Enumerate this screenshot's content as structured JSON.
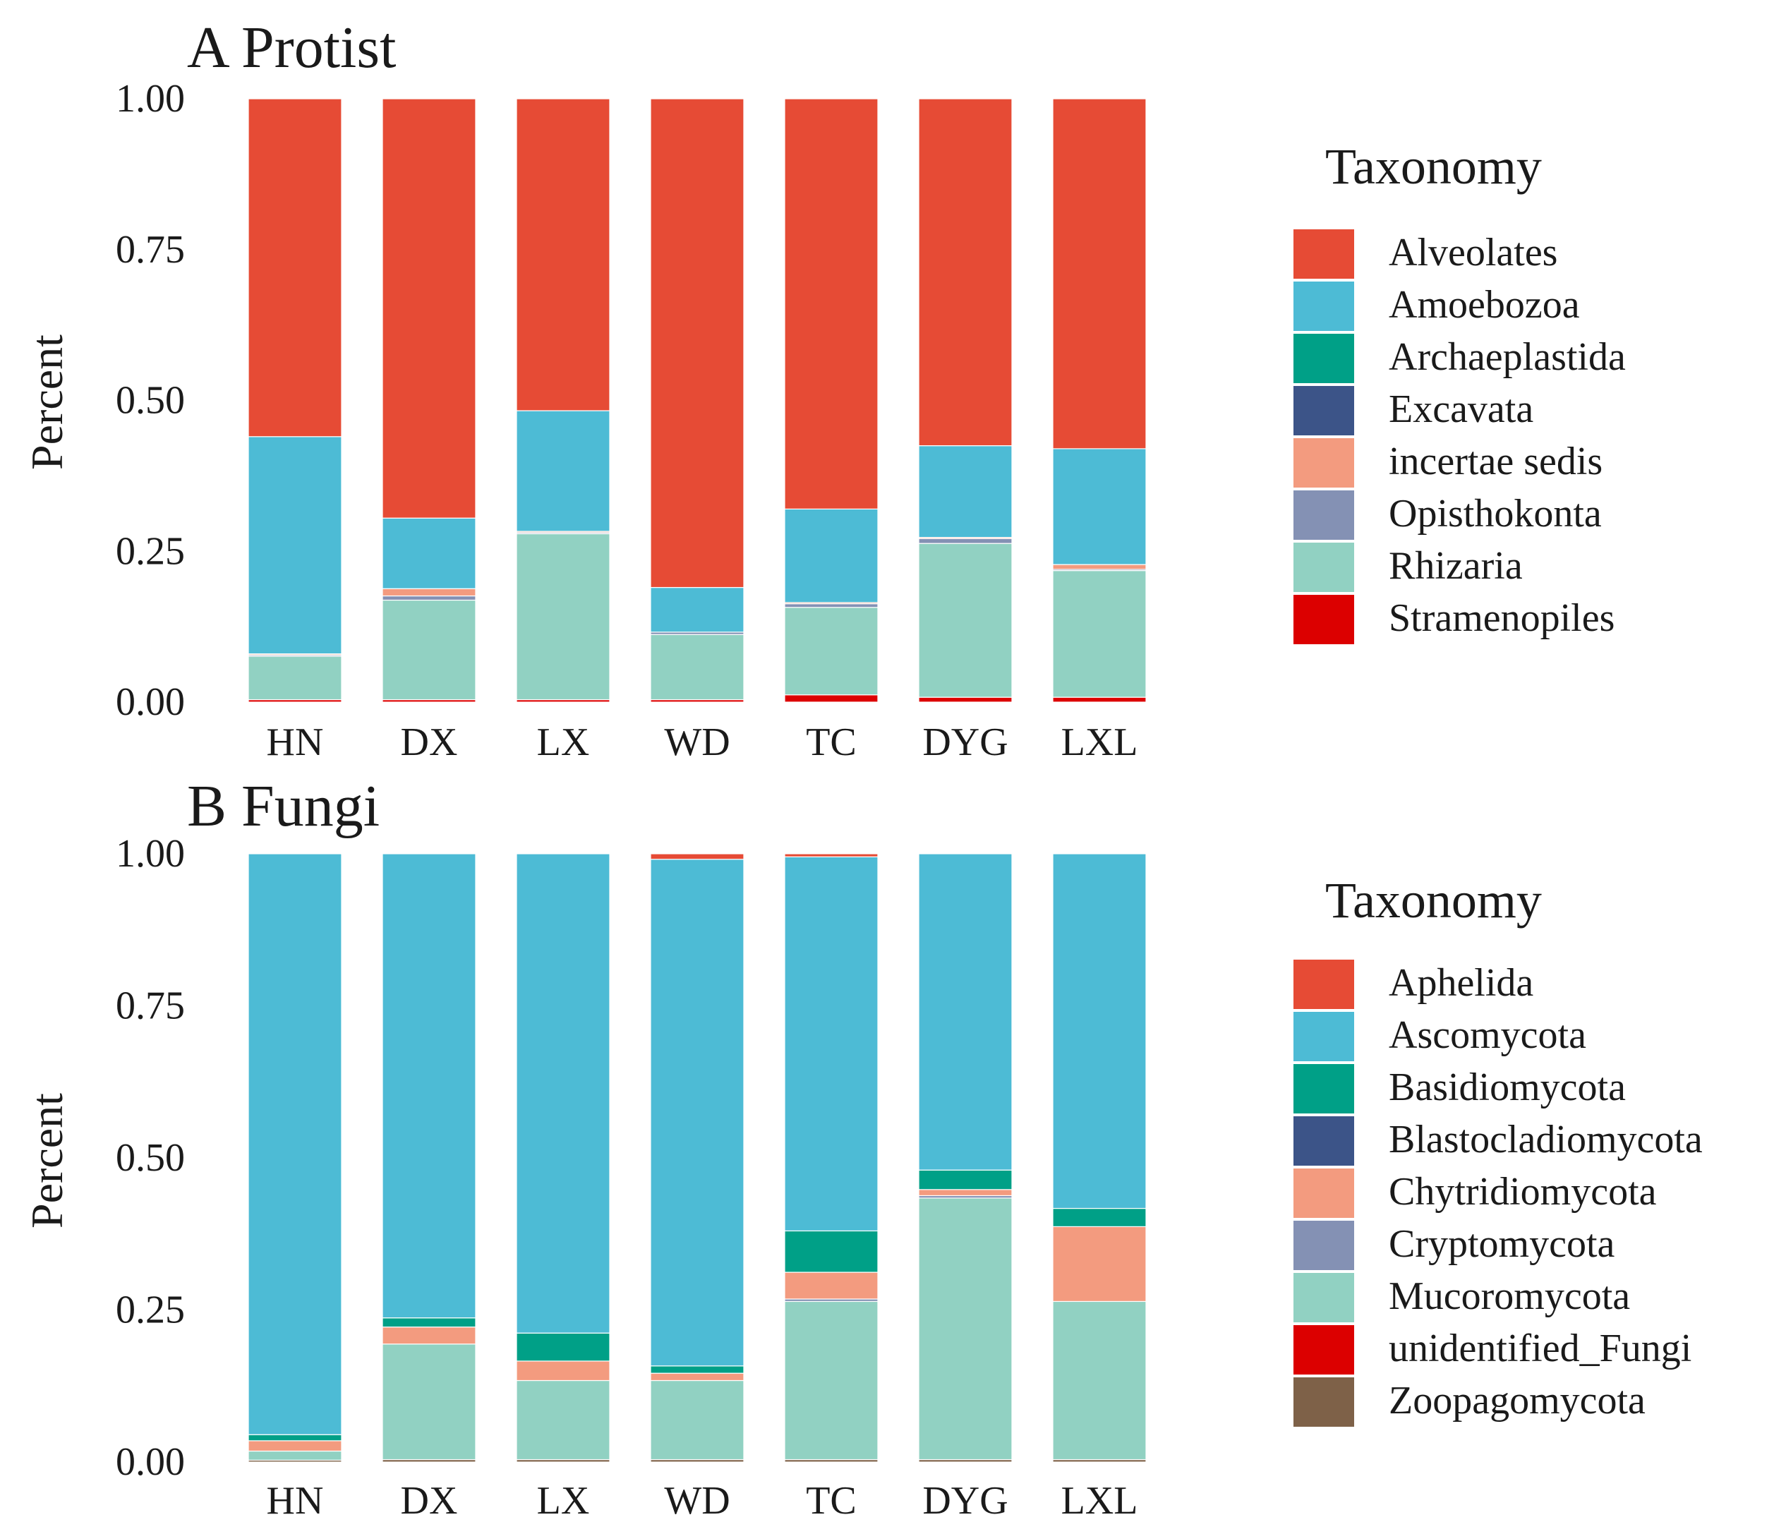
{
  "chart_data": [
    {
      "type": "bar",
      "stacked": true,
      "title": "A Protist",
      "xlabel": "",
      "ylabel": "Percent",
      "ylim": [
        0,
        1
      ],
      "yticks": [
        "0.00",
        "0.25",
        "0.50",
        "0.75",
        "1.00"
      ],
      "categories": [
        "HN",
        "DX",
        "LX",
        "WD",
        "TC",
        "DYG",
        "LXL"
      ],
      "legend_title": "Taxonomy",
      "legend_position": "right",
      "series": [
        {
          "name": "Stramenopiles",
          "color": "#dc0000",
          "values": [
            0.004,
            0.004,
            0.004,
            0.004,
            0.012,
            0.008,
            0.008
          ]
        },
        {
          "name": "Rhizaria",
          "color": "#91d1c2",
          "values": [
            0.072,
            0.165,
            0.275,
            0.108,
            0.145,
            0.255,
            0.21
          ]
        },
        {
          "name": "Opisthokonta",
          "color": "#8491b4",
          "values": [
            0.002,
            0.007,
            0.002,
            0.004,
            0.006,
            0.008,
            0.002
          ]
        },
        {
          "name": "incertae sedis",
          "color": "#f39b7f",
          "values": [
            0.002,
            0.012,
            0.002,
            0.0,
            0.002,
            0.002,
            0.008
          ]
        },
        {
          "name": "Excavata",
          "color": "#3c5488",
          "values": [
            0.0,
            0.0,
            0.0,
            0.0,
            0.0,
            0.0,
            0.0
          ]
        },
        {
          "name": "Archaeplastida",
          "color": "#00a087",
          "values": [
            0.0,
            0.0,
            0.0,
            0.0,
            0.0,
            0.0,
            0.0
          ]
        },
        {
          "name": "Amoebozoa",
          "color": "#4dbbd5",
          "values": [
            0.36,
            0.117,
            0.2,
            0.074,
            0.155,
            0.152,
            0.192
          ]
        },
        {
          "name": "Alveolates",
          "color": "#e64b35",
          "values": [
            0.56,
            0.695,
            0.517,
            0.81,
            0.68,
            0.575,
            0.58
          ]
        }
      ],
      "legend_items": [
        "Alveolates",
        "Amoebozoa",
        "Archaeplastida",
        "Excavata",
        "incertae sedis",
        "Opisthokonta",
        "Rhizaria",
        "Stramenopiles"
      ],
      "legend_colors": [
        "#e64b35",
        "#4dbbd5",
        "#00a087",
        "#3c5488",
        "#f39b7f",
        "#8491b4",
        "#91d1c2",
        "#dc0000"
      ]
    },
    {
      "type": "bar",
      "stacked": true,
      "title": "B Fungi",
      "xlabel": "",
      "ylabel": "Percent",
      "ylim": [
        0,
        1
      ],
      "yticks": [
        "0.00",
        "0.25",
        "0.50",
        "0.75",
        "1.00"
      ],
      "categories": [
        "HN",
        "DX",
        "LX",
        "WD",
        "TC",
        "DYG",
        "LXL"
      ],
      "legend_title": "Taxonomy",
      "legend_position": "right",
      "series": [
        {
          "name": "Zoopagomycota",
          "color": "#7e6148",
          "values": [
            0.003,
            0.004,
            0.004,
            0.004,
            0.004,
            0.004,
            0.004
          ]
        },
        {
          "name": "unidentified_Fungi",
          "color": "#dc0000",
          "values": [
            0.0,
            0.0,
            0.0,
            0.0,
            0.0,
            0.0,
            0.0
          ]
        },
        {
          "name": "Mucoromycota",
          "color": "#91d1c2",
          "values": [
            0.015,
            0.19,
            0.13,
            0.13,
            0.26,
            0.43,
            0.26
          ]
        },
        {
          "name": "Cryptomycota",
          "color": "#8491b4",
          "values": [
            0.0,
            0.0,
            0.0,
            0.0,
            0.004,
            0.004,
            0.0
          ]
        },
        {
          "name": "Chytridiomycota",
          "color": "#f39b7f",
          "values": [
            0.017,
            0.028,
            0.032,
            0.012,
            0.044,
            0.01,
            0.123
          ]
        },
        {
          "name": "Blastocladiomycota",
          "color": "#3c5488",
          "values": [
            0.0,
            0.0,
            0.0,
            0.0,
            0.0,
            0.0,
            0.0
          ]
        },
        {
          "name": "Basidiomycota",
          "color": "#00a087",
          "values": [
            0.01,
            0.015,
            0.046,
            0.012,
            0.068,
            0.032,
            0.03
          ]
        },
        {
          "name": "Ascomycota",
          "color": "#4dbbd5",
          "values": [
            0.955,
            0.763,
            0.788,
            0.833,
            0.615,
            0.52,
            0.583
          ]
        },
        {
          "name": "Aphelida",
          "color": "#e64b35",
          "values": [
            0.0,
            0.0,
            0.0,
            0.009,
            0.005,
            0.0,
            0.0
          ]
        }
      ],
      "legend_items": [
        "Aphelida",
        "Ascomycota",
        "Basidiomycota",
        "Blastocladiomycota",
        "Chytridiomycota",
        "Cryptomycota",
        "Mucoromycota",
        "unidentified_Fungi",
        "Zoopagomycota"
      ],
      "legend_colors": [
        "#e64b35",
        "#4dbbd5",
        "#00a087",
        "#3c5488",
        "#f39b7f",
        "#8491b4",
        "#91d1c2",
        "#dc0000",
        "#7e6148"
      ]
    }
  ]
}
